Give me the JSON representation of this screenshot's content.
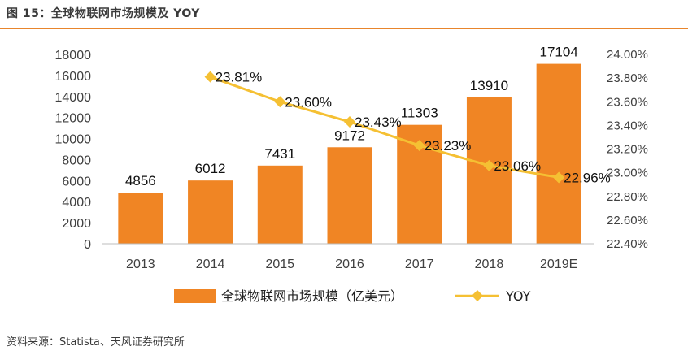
{
  "header": {
    "title": "图 15：全球物联网市场规模及 YOY"
  },
  "footer": {
    "source": "资料来源：Statista、天风证券研究所"
  },
  "colors": {
    "bar": "#f08524",
    "line": "#f5c033",
    "rule": "#e8852c"
  },
  "chart_data": {
    "type": "bar+line",
    "categories": [
      "2013",
      "2014",
      "2015",
      "2016",
      "2017",
      "2018",
      "2019E"
    ],
    "series": [
      {
        "name": "全球物联网市场规模（亿美元）",
        "type": "bar",
        "axis": "left",
        "values": [
          4856,
          6012,
          7431,
          9172,
          11303,
          13910,
          17104
        ],
        "labels": [
          "4856",
          "6012",
          "7431",
          "9172",
          "11303",
          "13910",
          "17104"
        ]
      },
      {
        "name": "YOY",
        "type": "line",
        "axis": "right",
        "values": [
          null,
          23.81,
          23.6,
          23.43,
          23.23,
          23.06,
          22.96
        ],
        "labels": [
          "",
          "23.81%",
          "23.60%",
          "23.43%",
          "23.23%",
          "23.06%",
          "22.96%"
        ]
      }
    ],
    "y_left": {
      "ylim": [
        0,
        18000
      ],
      "ticks": [
        "0",
        "2000",
        "4000",
        "6000",
        "8000",
        "10000",
        "12000",
        "14000",
        "16000",
        "18000"
      ]
    },
    "y_right": {
      "ylim": [
        22.4,
        24.0
      ],
      "ticks": [
        "22.40%",
        "22.60%",
        "22.80%",
        "23.00%",
        "23.20%",
        "23.40%",
        "23.60%",
        "23.80%",
        "24.00%"
      ]
    },
    "grid": false,
    "legend": "bottom"
  }
}
